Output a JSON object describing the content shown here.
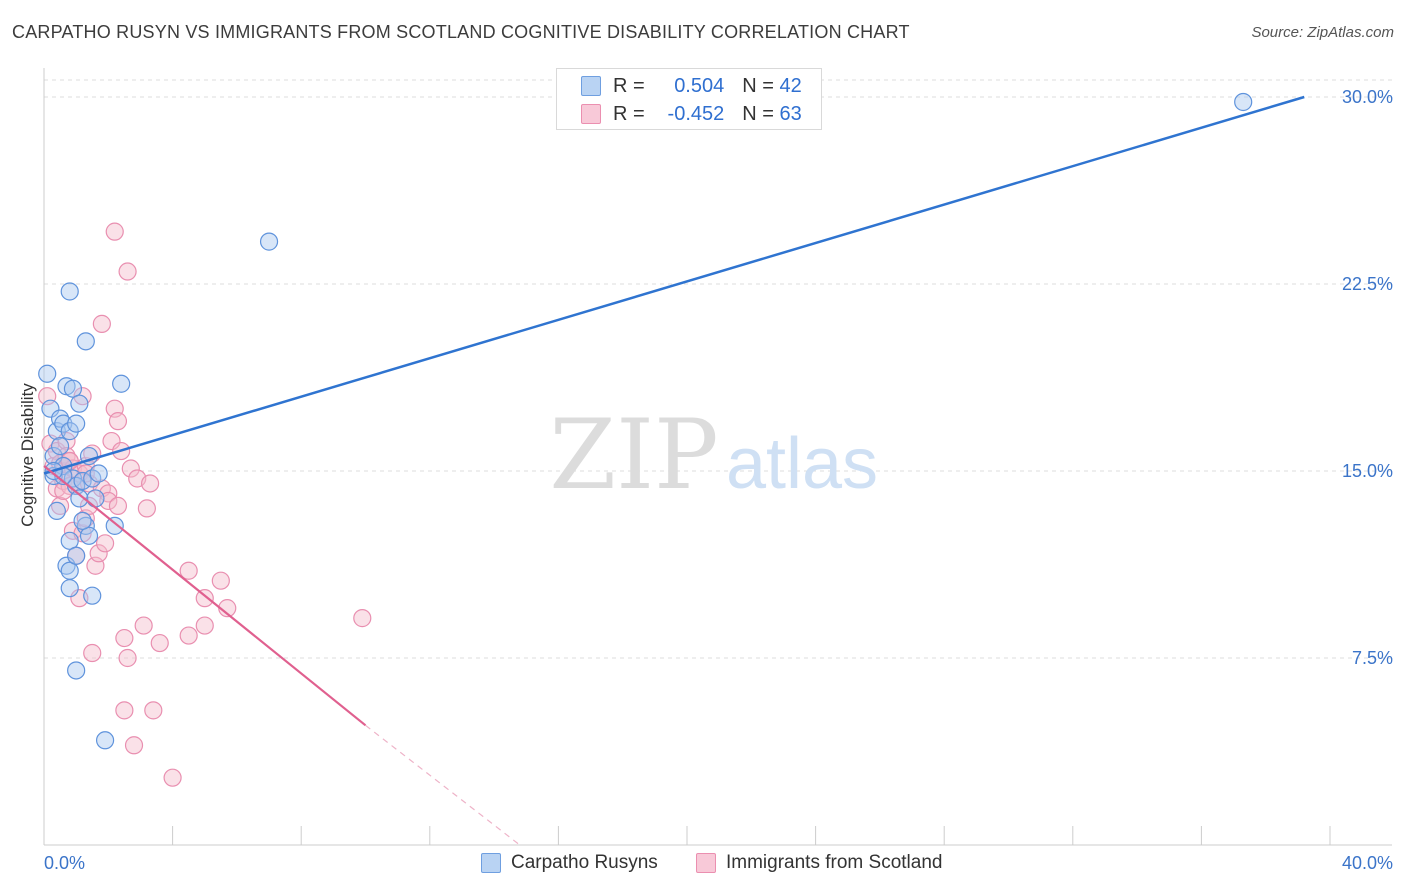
{
  "title": "CARPATHO RUSYN VS IMMIGRANTS FROM SCOTLAND COGNITIVE DISABILITY CORRELATION CHART",
  "source": "Source: ZipAtlas.com",
  "watermark": {
    "zip": "ZIP",
    "atlas": "atlas"
  },
  "colors": {
    "blue": "#2f74d0",
    "blue_fill": "#a9c8f0",
    "pink": "#e0608f",
    "pink_fill": "#f5bccd",
    "tick_label": "#3b74c9",
    "grid": "#dddddd"
  },
  "legend": {
    "rows": [
      {
        "r_label": "R =",
        "r_value": "0.504",
        "n_label": "N =",
        "n_value": "42"
      },
      {
        "r_label": "R =",
        "r_value": "-0.452",
        "n_label": "N =",
        "n_value": "63"
      }
    ]
  },
  "chart_data": {
    "type": "scatter",
    "title": "CARPATHO RUSYN VS IMMIGRANTS FROM SCOTLAND COGNITIVE DISABILITY CORRELATION CHART",
    "xlabel": "",
    "ylabel": "Cognitive Disability",
    "xlim": [
      0,
      40
    ],
    "ylim": [
      0,
      30
    ],
    "x_tick_labels": [
      "0.0%",
      "40.0%"
    ],
    "y_ticks": [
      7.5,
      15.0,
      22.5,
      30.0
    ],
    "y_tick_labels": [
      "7.5%",
      "15.0%",
      "22.5%",
      "30.0%"
    ],
    "grid": true,
    "legend_position": "top-center",
    "series": [
      {
        "name": "Carpatho Rusyns",
        "color": "#2f74d0",
        "r": 0.504,
        "n": 42,
        "trend": {
          "x": [
            0,
            39.2
          ],
          "y": [
            14.9,
            30.0
          ]
        },
        "points": [
          [
            0.1,
            18.9
          ],
          [
            0.2,
            17.5
          ],
          [
            0.3,
            15.6
          ],
          [
            0.3,
            14.8
          ],
          [
            0.4,
            16.6
          ],
          [
            0.4,
            13.4
          ],
          [
            0.5,
            16.0
          ],
          [
            0.5,
            17.1
          ],
          [
            0.6,
            15.2
          ],
          [
            0.6,
            16.9
          ],
          [
            0.7,
            18.4
          ],
          [
            0.7,
            11.2
          ],
          [
            0.8,
            12.2
          ],
          [
            0.8,
            11.0
          ],
          [
            0.8,
            16.6
          ],
          [
            0.8,
            22.2
          ],
          [
            0.8,
            10.3
          ],
          [
            0.9,
            18.3
          ],
          [
            0.9,
            14.7
          ],
          [
            1.0,
            16.9
          ],
          [
            1.0,
            11.6
          ],
          [
            1.0,
            7.0
          ],
          [
            1.0,
            14.4
          ],
          [
            1.1,
            17.7
          ],
          [
            1.1,
            13.9
          ],
          [
            1.2,
            14.6
          ],
          [
            1.3,
            12.8
          ],
          [
            1.3,
            20.2
          ],
          [
            1.4,
            15.6
          ],
          [
            1.4,
            12.4
          ],
          [
            1.5,
            10.0
          ],
          [
            1.5,
            14.7
          ],
          [
            1.6,
            13.9
          ],
          [
            1.7,
            14.9
          ],
          [
            1.9,
            4.2
          ],
          [
            2.2,
            12.8
          ],
          [
            2.4,
            18.5
          ],
          [
            7.0,
            24.2
          ],
          [
            37.3,
            29.8
          ],
          [
            0.6,
            14.8
          ],
          [
            0.3,
            15.0
          ],
          [
            1.2,
            13.0
          ]
        ]
      },
      {
        "name": "Immigrants from Scotland",
        "color": "#e0608f",
        "r": -0.452,
        "n": 63,
        "trend": {
          "x": [
            0,
            10.0
          ],
          "y": [
            15.2,
            4.8
          ]
        },
        "trend_dashed": {
          "x": [
            10.0,
            14.8
          ],
          "y": [
            4.8,
            0.0
          ]
        },
        "points": [
          [
            0.1,
            18.0
          ],
          [
            0.2,
            16.1
          ],
          [
            0.3,
            15.2
          ],
          [
            0.4,
            15.8
          ],
          [
            0.4,
            14.3
          ],
          [
            0.5,
            15.3
          ],
          [
            0.5,
            13.6
          ],
          [
            0.6,
            15.0
          ],
          [
            0.6,
            14.6
          ],
          [
            0.7,
            16.2
          ],
          [
            0.7,
            15.6
          ],
          [
            0.8,
            14.4
          ],
          [
            0.8,
            15.4
          ],
          [
            0.9,
            12.6
          ],
          [
            0.9,
            15.1
          ],
          [
            1.0,
            14.4
          ],
          [
            1.0,
            11.6
          ],
          [
            1.1,
            9.9
          ],
          [
            1.1,
            14.9
          ],
          [
            1.2,
            12.5
          ],
          [
            1.3,
            15.2
          ],
          [
            1.3,
            13.1
          ],
          [
            1.4,
            14.5
          ],
          [
            1.4,
            13.6
          ],
          [
            1.5,
            15.7
          ],
          [
            1.5,
            7.7
          ],
          [
            1.6,
            11.2
          ],
          [
            1.7,
            11.7
          ],
          [
            1.8,
            20.9
          ],
          [
            1.8,
            14.3
          ],
          [
            1.9,
            12.1
          ],
          [
            2.0,
            14.1
          ],
          [
            2.0,
            13.8
          ],
          [
            2.1,
            16.2
          ],
          [
            2.2,
            24.6
          ],
          [
            2.2,
            17.5
          ],
          [
            2.3,
            17.0
          ],
          [
            2.3,
            13.6
          ],
          [
            2.4,
            15.8
          ],
          [
            2.5,
            8.3
          ],
          [
            2.5,
            5.4
          ],
          [
            2.6,
            7.5
          ],
          [
            2.6,
            23.0
          ],
          [
            2.7,
            15.1
          ],
          [
            2.8,
            4.0
          ],
          [
            2.9,
            14.7
          ],
          [
            3.1,
            8.8
          ],
          [
            3.2,
            13.5
          ],
          [
            3.3,
            14.5
          ],
          [
            3.4,
            5.4
          ],
          [
            3.6,
            8.1
          ],
          [
            4.0,
            2.7
          ],
          [
            4.5,
            11.0
          ],
          [
            4.5,
            8.4
          ],
          [
            5.0,
            9.9
          ],
          [
            5.0,
            8.8
          ],
          [
            5.5,
            10.6
          ],
          [
            5.7,
            9.5
          ],
          [
            9.9,
            9.1
          ],
          [
            1.2,
            18.0
          ],
          [
            0.6,
            14.2
          ],
          [
            0.8,
            15.4
          ],
          [
            1.3,
            14.9
          ]
        ]
      }
    ]
  }
}
